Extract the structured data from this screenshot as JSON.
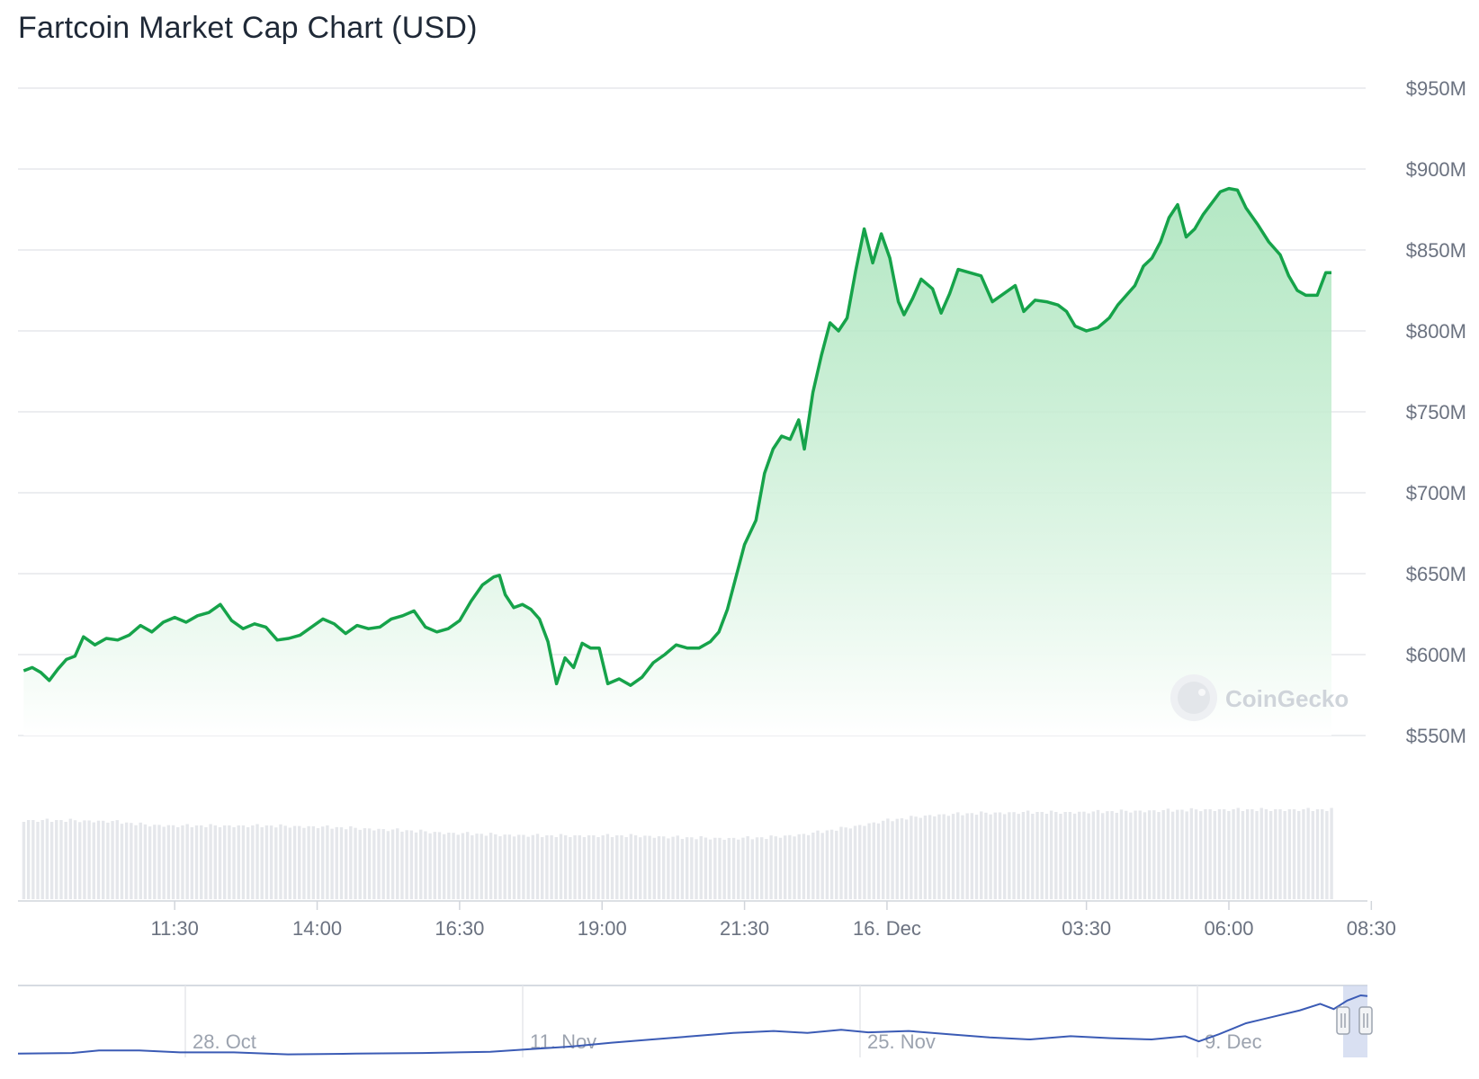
{
  "title": "Fartcoin Market Cap Chart (USD)",
  "watermark": "CoinGecko",
  "colors": {
    "line": "#16a34a",
    "fill_top": "#9be0b0",
    "fill_bottom": "#ffffff",
    "grid": "#e5e7eb",
    "volume": "#e5e7eb",
    "navigator_line": "#3b5bb5",
    "navigator_handle": "#c9d3ec"
  },
  "chart_data": {
    "type": "area",
    "title": "Fartcoin Market Cap Chart (USD)",
    "y_ticks": [
      {
        "value": 950,
        "label": "$950M"
      },
      {
        "value": 900,
        "label": "$900M"
      },
      {
        "value": 850,
        "label": "$850M"
      },
      {
        "value": 800,
        "label": "$800M"
      },
      {
        "value": 750,
        "label": "$750M"
      },
      {
        "value": 700,
        "label": "$700M"
      },
      {
        "value": 650,
        "label": "$650M"
      },
      {
        "value": 600,
        "label": "$600M"
      },
      {
        "value": 550,
        "label": "$550M"
      }
    ],
    "ylim": [
      550,
      950
    ],
    "y_unit": "USD millions",
    "x_ticks": [
      {
        "t": 11.5,
        "label": "11:30"
      },
      {
        "t": 14.0,
        "label": "14:00"
      },
      {
        "t": 16.5,
        "label": "16:30"
      },
      {
        "t": 19.0,
        "label": "19:00"
      },
      {
        "t": 21.5,
        "label": "21:30"
      },
      {
        "t": 24.0,
        "label": "16. Dec"
      },
      {
        "t": 27.5,
        "label": "03:30"
      },
      {
        "t": 30.0,
        "label": "06:00"
      },
      {
        "t": 32.5,
        "label": "08:30"
      }
    ],
    "xlim": [
      8.75,
      32.4
    ],
    "x_unit": "hours from 15 Dec 00:00",
    "series": [
      {
        "points": [
          [
            8.85,
            590
          ],
          [
            9.0,
            592
          ],
          [
            9.15,
            589
          ],
          [
            9.3,
            584
          ],
          [
            9.45,
            591
          ],
          [
            9.6,
            597
          ],
          [
            9.75,
            599
          ],
          [
            9.9,
            611
          ],
          [
            10.1,
            606
          ],
          [
            10.3,
            610
          ],
          [
            10.5,
            609
          ],
          [
            10.7,
            612
          ],
          [
            10.9,
            618
          ],
          [
            11.1,
            614
          ],
          [
            11.3,
            620
          ],
          [
            11.5,
            623
          ],
          [
            11.7,
            620
          ],
          [
            11.9,
            624
          ],
          [
            12.1,
            626
          ],
          [
            12.3,
            631
          ],
          [
            12.5,
            621
          ],
          [
            12.7,
            616
          ],
          [
            12.9,
            619
          ],
          [
            13.1,
            617
          ],
          [
            13.3,
            609
          ],
          [
            13.5,
            610
          ],
          [
            13.7,
            612
          ],
          [
            13.9,
            617
          ],
          [
            14.1,
            622
          ],
          [
            14.3,
            619
          ],
          [
            14.5,
            613
          ],
          [
            14.7,
            618
          ],
          [
            14.9,
            616
          ],
          [
            15.1,
            617
          ],
          [
            15.3,
            622
          ],
          [
            15.5,
            624
          ],
          [
            15.7,
            627
          ],
          [
            15.9,
            617
          ],
          [
            16.1,
            614
          ],
          [
            16.3,
            616
          ],
          [
            16.5,
            621
          ],
          [
            16.7,
            633
          ],
          [
            16.9,
            643
          ],
          [
            17.1,
            648
          ],
          [
            17.2,
            649
          ],
          [
            17.3,
            637
          ],
          [
            17.45,
            629
          ],
          [
            17.6,
            631
          ],
          [
            17.75,
            628
          ],
          [
            17.9,
            622
          ],
          [
            18.05,
            608
          ],
          [
            18.2,
            582
          ],
          [
            18.35,
            598
          ],
          [
            18.5,
            592
          ],
          [
            18.65,
            607
          ],
          [
            18.8,
            604
          ],
          [
            18.95,
            604
          ],
          [
            19.1,
            582
          ],
          [
            19.3,
            585
          ],
          [
            19.5,
            581
          ],
          [
            19.7,
            586
          ],
          [
            19.9,
            595
          ],
          [
            20.1,
            600
          ],
          [
            20.3,
            606
          ],
          [
            20.5,
            604
          ],
          [
            20.7,
            604
          ],
          [
            20.9,
            608
          ],
          [
            21.05,
            614
          ],
          [
            21.2,
            628
          ],
          [
            21.35,
            648
          ],
          [
            21.5,
            668
          ],
          [
            21.7,
            683
          ],
          [
            21.85,
            712
          ],
          [
            22.0,
            727
          ],
          [
            22.15,
            735
          ],
          [
            22.3,
            733
          ],
          [
            22.45,
            745
          ],
          [
            22.55,
            727
          ],
          [
            22.7,
            762
          ],
          [
            22.85,
            785
          ],
          [
            23.0,
            805
          ],
          [
            23.15,
            800
          ],
          [
            23.3,
            808
          ],
          [
            23.45,
            837
          ],
          [
            23.6,
            863
          ],
          [
            23.75,
            842
          ],
          [
            23.9,
            860
          ],
          [
            24.05,
            845
          ],
          [
            24.2,
            818
          ],
          [
            24.3,
            810
          ],
          [
            24.45,
            820
          ],
          [
            24.6,
            832
          ],
          [
            24.8,
            826
          ],
          [
            24.95,
            811
          ],
          [
            25.1,
            823
          ],
          [
            25.25,
            838
          ],
          [
            25.45,
            836
          ],
          [
            25.65,
            834
          ],
          [
            25.85,
            818
          ],
          [
            26.05,
            823
          ],
          [
            26.25,
            828
          ],
          [
            26.4,
            812
          ],
          [
            26.6,
            819
          ],
          [
            26.8,
            818
          ],
          [
            27.0,
            816
          ],
          [
            27.15,
            812
          ],
          [
            27.3,
            803
          ],
          [
            27.5,
            800
          ],
          [
            27.7,
            802
          ],
          [
            27.9,
            808
          ],
          [
            28.05,
            816
          ],
          [
            28.2,
            822
          ],
          [
            28.35,
            828
          ],
          [
            28.5,
            840
          ],
          [
            28.65,
            845
          ],
          [
            28.8,
            855
          ],
          [
            28.95,
            870
          ],
          [
            29.1,
            878
          ],
          [
            29.25,
            858
          ],
          [
            29.4,
            863
          ],
          [
            29.55,
            872
          ],
          [
            29.7,
            879
          ],
          [
            29.85,
            886
          ],
          [
            30.0,
            888
          ],
          [
            30.15,
            887
          ],
          [
            30.3,
            876
          ],
          [
            30.5,
            866
          ],
          [
            30.7,
            855
          ],
          [
            30.9,
            847
          ],
          [
            31.05,
            834
          ],
          [
            31.2,
            825
          ],
          [
            31.35,
            822
          ],
          [
            31.55,
            822
          ],
          [
            31.7,
            836
          ],
          [
            31.8,
            836
          ]
        ]
      }
    ],
    "volume_series": [
      {
        "points": [
          [
            8.85,
            0.88
          ],
          [
            9.6,
            0.88
          ],
          [
            10.4,
            0.87
          ],
          [
            11.0,
            0.83
          ],
          [
            11.6,
            0.82
          ],
          [
            12.4,
            0.82
          ],
          [
            13.1,
            0.82
          ],
          [
            14.0,
            0.81
          ],
          [
            14.8,
            0.79
          ],
          [
            15.5,
            0.77
          ],
          [
            16.3,
            0.74
          ],
          [
            17.2,
            0.72
          ],
          [
            18.0,
            0.71
          ],
          [
            18.8,
            0.71
          ],
          [
            19.6,
            0.71
          ],
          [
            20.4,
            0.69
          ],
          [
            21.2,
            0.68
          ],
          [
            21.9,
            0.69
          ],
          [
            22.6,
            0.73
          ],
          [
            23.3,
            0.8
          ],
          [
            24.0,
            0.88
          ],
          [
            24.8,
            0.94
          ],
          [
            25.6,
            0.96
          ],
          [
            26.4,
            0.97
          ],
          [
            27.2,
            0.97
          ],
          [
            28.0,
            0.98
          ],
          [
            28.8,
            0.99
          ],
          [
            29.6,
            1.0
          ],
          [
            30.4,
            1.0
          ],
          [
            31.2,
            1.0
          ],
          [
            31.8,
            1.0
          ]
        ]
      }
    ],
    "navigator": {
      "labels": [
        {
          "frac": 0.124,
          "label": "28. Oct"
        },
        {
          "frac": 0.374,
          "label": "11. Nov"
        },
        {
          "frac": 0.624,
          "label": "25. Nov"
        },
        {
          "frac": 0.874,
          "label": "9. Dec"
        }
      ],
      "series": [
        [
          0.0,
          0.03
        ],
        [
          0.04,
          0.04
        ],
        [
          0.06,
          0.08
        ],
        [
          0.09,
          0.08
        ],
        [
          0.12,
          0.05
        ],
        [
          0.16,
          0.05
        ],
        [
          0.2,
          0.02
        ],
        [
          0.25,
          0.03
        ],
        [
          0.3,
          0.04
        ],
        [
          0.35,
          0.06
        ],
        [
          0.38,
          0.1
        ],
        [
          0.41,
          0.14
        ],
        [
          0.44,
          0.2
        ],
        [
          0.47,
          0.25
        ],
        [
          0.5,
          0.3
        ],
        [
          0.53,
          0.35
        ],
        [
          0.56,
          0.38
        ],
        [
          0.585,
          0.35
        ],
        [
          0.61,
          0.4
        ],
        [
          0.63,
          0.36
        ],
        [
          0.66,
          0.38
        ],
        [
          0.69,
          0.33
        ],
        [
          0.72,
          0.28
        ],
        [
          0.75,
          0.25
        ],
        [
          0.78,
          0.3
        ],
        [
          0.81,
          0.27
        ],
        [
          0.84,
          0.25
        ],
        [
          0.865,
          0.3
        ],
        [
          0.875,
          0.22
        ],
        [
          0.89,
          0.33
        ],
        [
          0.91,
          0.5
        ],
        [
          0.93,
          0.6
        ],
        [
          0.95,
          0.7
        ],
        [
          0.965,
          0.8
        ],
        [
          0.975,
          0.72
        ],
        [
          0.985,
          0.85
        ],
        [
          0.995,
          0.93
        ],
        [
          1.0,
          0.92
        ]
      ]
    }
  }
}
